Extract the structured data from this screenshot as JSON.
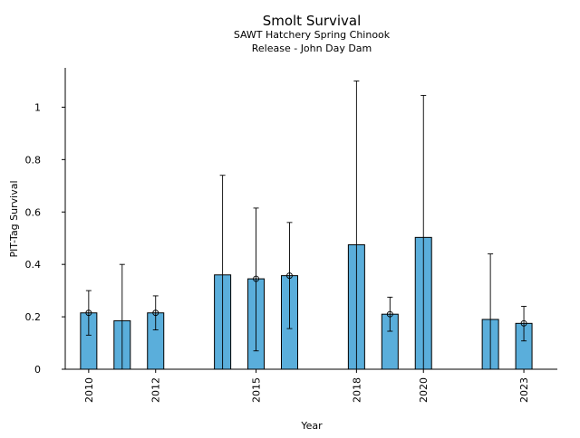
{
  "chart_data": {
    "type": "bar",
    "title": "Smolt Survival",
    "subtitle_lines": [
      "SAWT Hatchery Spring Chinook",
      "Release - John Day Dam"
    ],
    "xlabel": "Year",
    "ylabel": "PIT-Tag Survival",
    "xlim": [
      2009.3,
      2024.0
    ],
    "ylim": [
      0,
      1.15
    ],
    "x_ticks": [
      2010,
      2012,
      2015,
      2018,
      2020,
      2023
    ],
    "x_tick_labels": [
      "2010",
      "2012",
      "2015",
      "2018",
      "2020",
      "2023"
    ],
    "y_ticks": [
      0,
      0.2,
      0.4,
      0.6,
      0.8,
      1
    ],
    "y_tick_labels": [
      "0",
      "0.2",
      "0.4",
      "0.6",
      "0.8",
      "1"
    ],
    "grid": false,
    "bar_color": "#5aaedb",
    "series": [
      {
        "x": [
          2010,
          2011,
          2012,
          2014,
          2015,
          2016,
          2018,
          2019,
          2020,
          2022,
          2023
        ],
        "values": [
          0.215,
          0.185,
          0.215,
          0.36,
          0.345,
          0.357,
          0.475,
          0.21,
          0.503,
          0.19,
          0.175
        ],
        "error_lower": [
          0.13,
          null,
          0.15,
          null,
          0.07,
          0.155,
          null,
          0.145,
          null,
          null,
          0.108
        ],
        "error_upper": [
          0.3,
          0.4,
          0.28,
          0.74,
          0.615,
          0.56,
          1.1,
          0.275,
          1.045,
          0.44,
          0.24
        ],
        "point_marker": [
          true,
          false,
          true,
          false,
          true,
          true,
          false,
          true,
          false,
          false,
          true
        ]
      }
    ]
  }
}
